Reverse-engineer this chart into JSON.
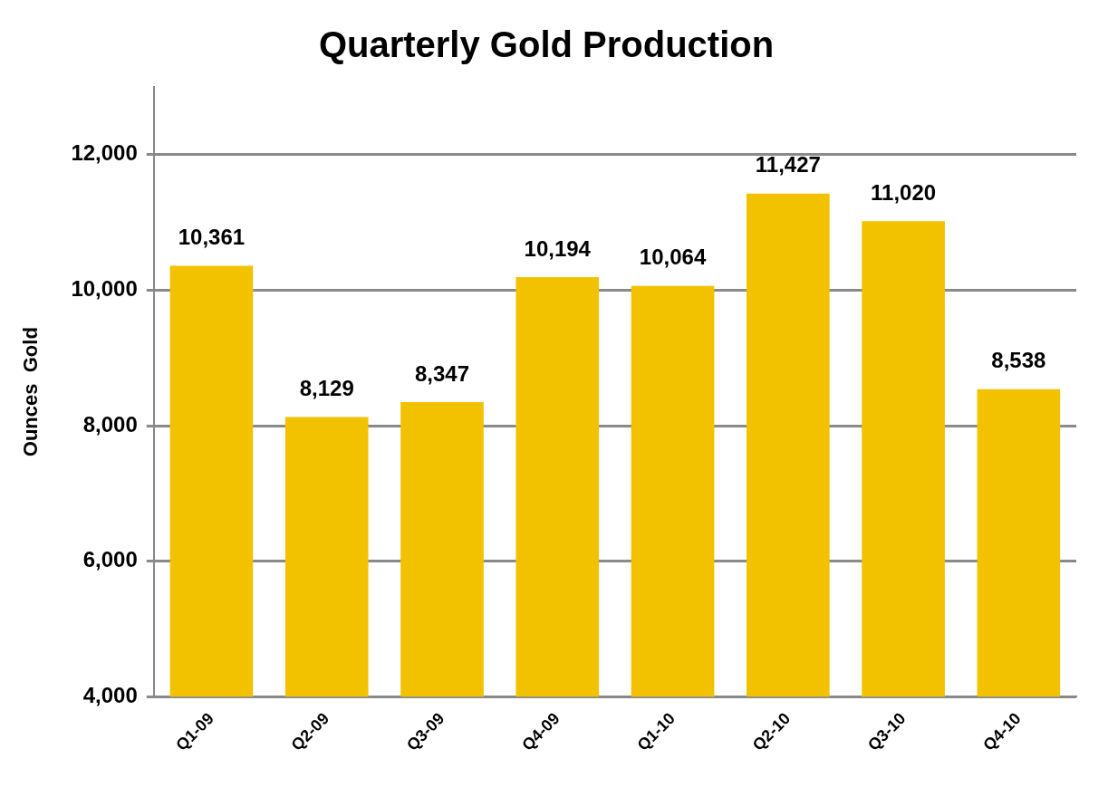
{
  "chart_data": {
    "type": "bar",
    "title": "Quarterly Gold Production",
    "ylabel": "Ounces  Gold",
    "categories": [
      "Q1-09",
      "Q2-09",
      "Q3-09",
      "Q4-09",
      "Q1-10",
      "Q2-10",
      "Q3-10",
      "Q4-10"
    ],
    "values": [
      10361,
      8129,
      8347,
      10194,
      10064,
      11427,
      11020,
      8538
    ],
    "value_labels": [
      "10,361",
      "8,129",
      "8,347",
      "10,194",
      "10,064",
      "11,427",
      "11,020",
      "8,538"
    ],
    "color": "#f2c200",
    "ylim": [
      4000,
      13000
    ],
    "yticks": [
      {
        "value": 4000,
        "label": "4,000"
      },
      {
        "value": 6000,
        "label": "6,000"
      },
      {
        "value": 8000,
        "label": "8,000"
      },
      {
        "value": 10000,
        "label": "10,000"
      },
      {
        "value": 12000,
        "label": "12,000"
      }
    ],
    "grid": "y",
    "legend": false
  }
}
